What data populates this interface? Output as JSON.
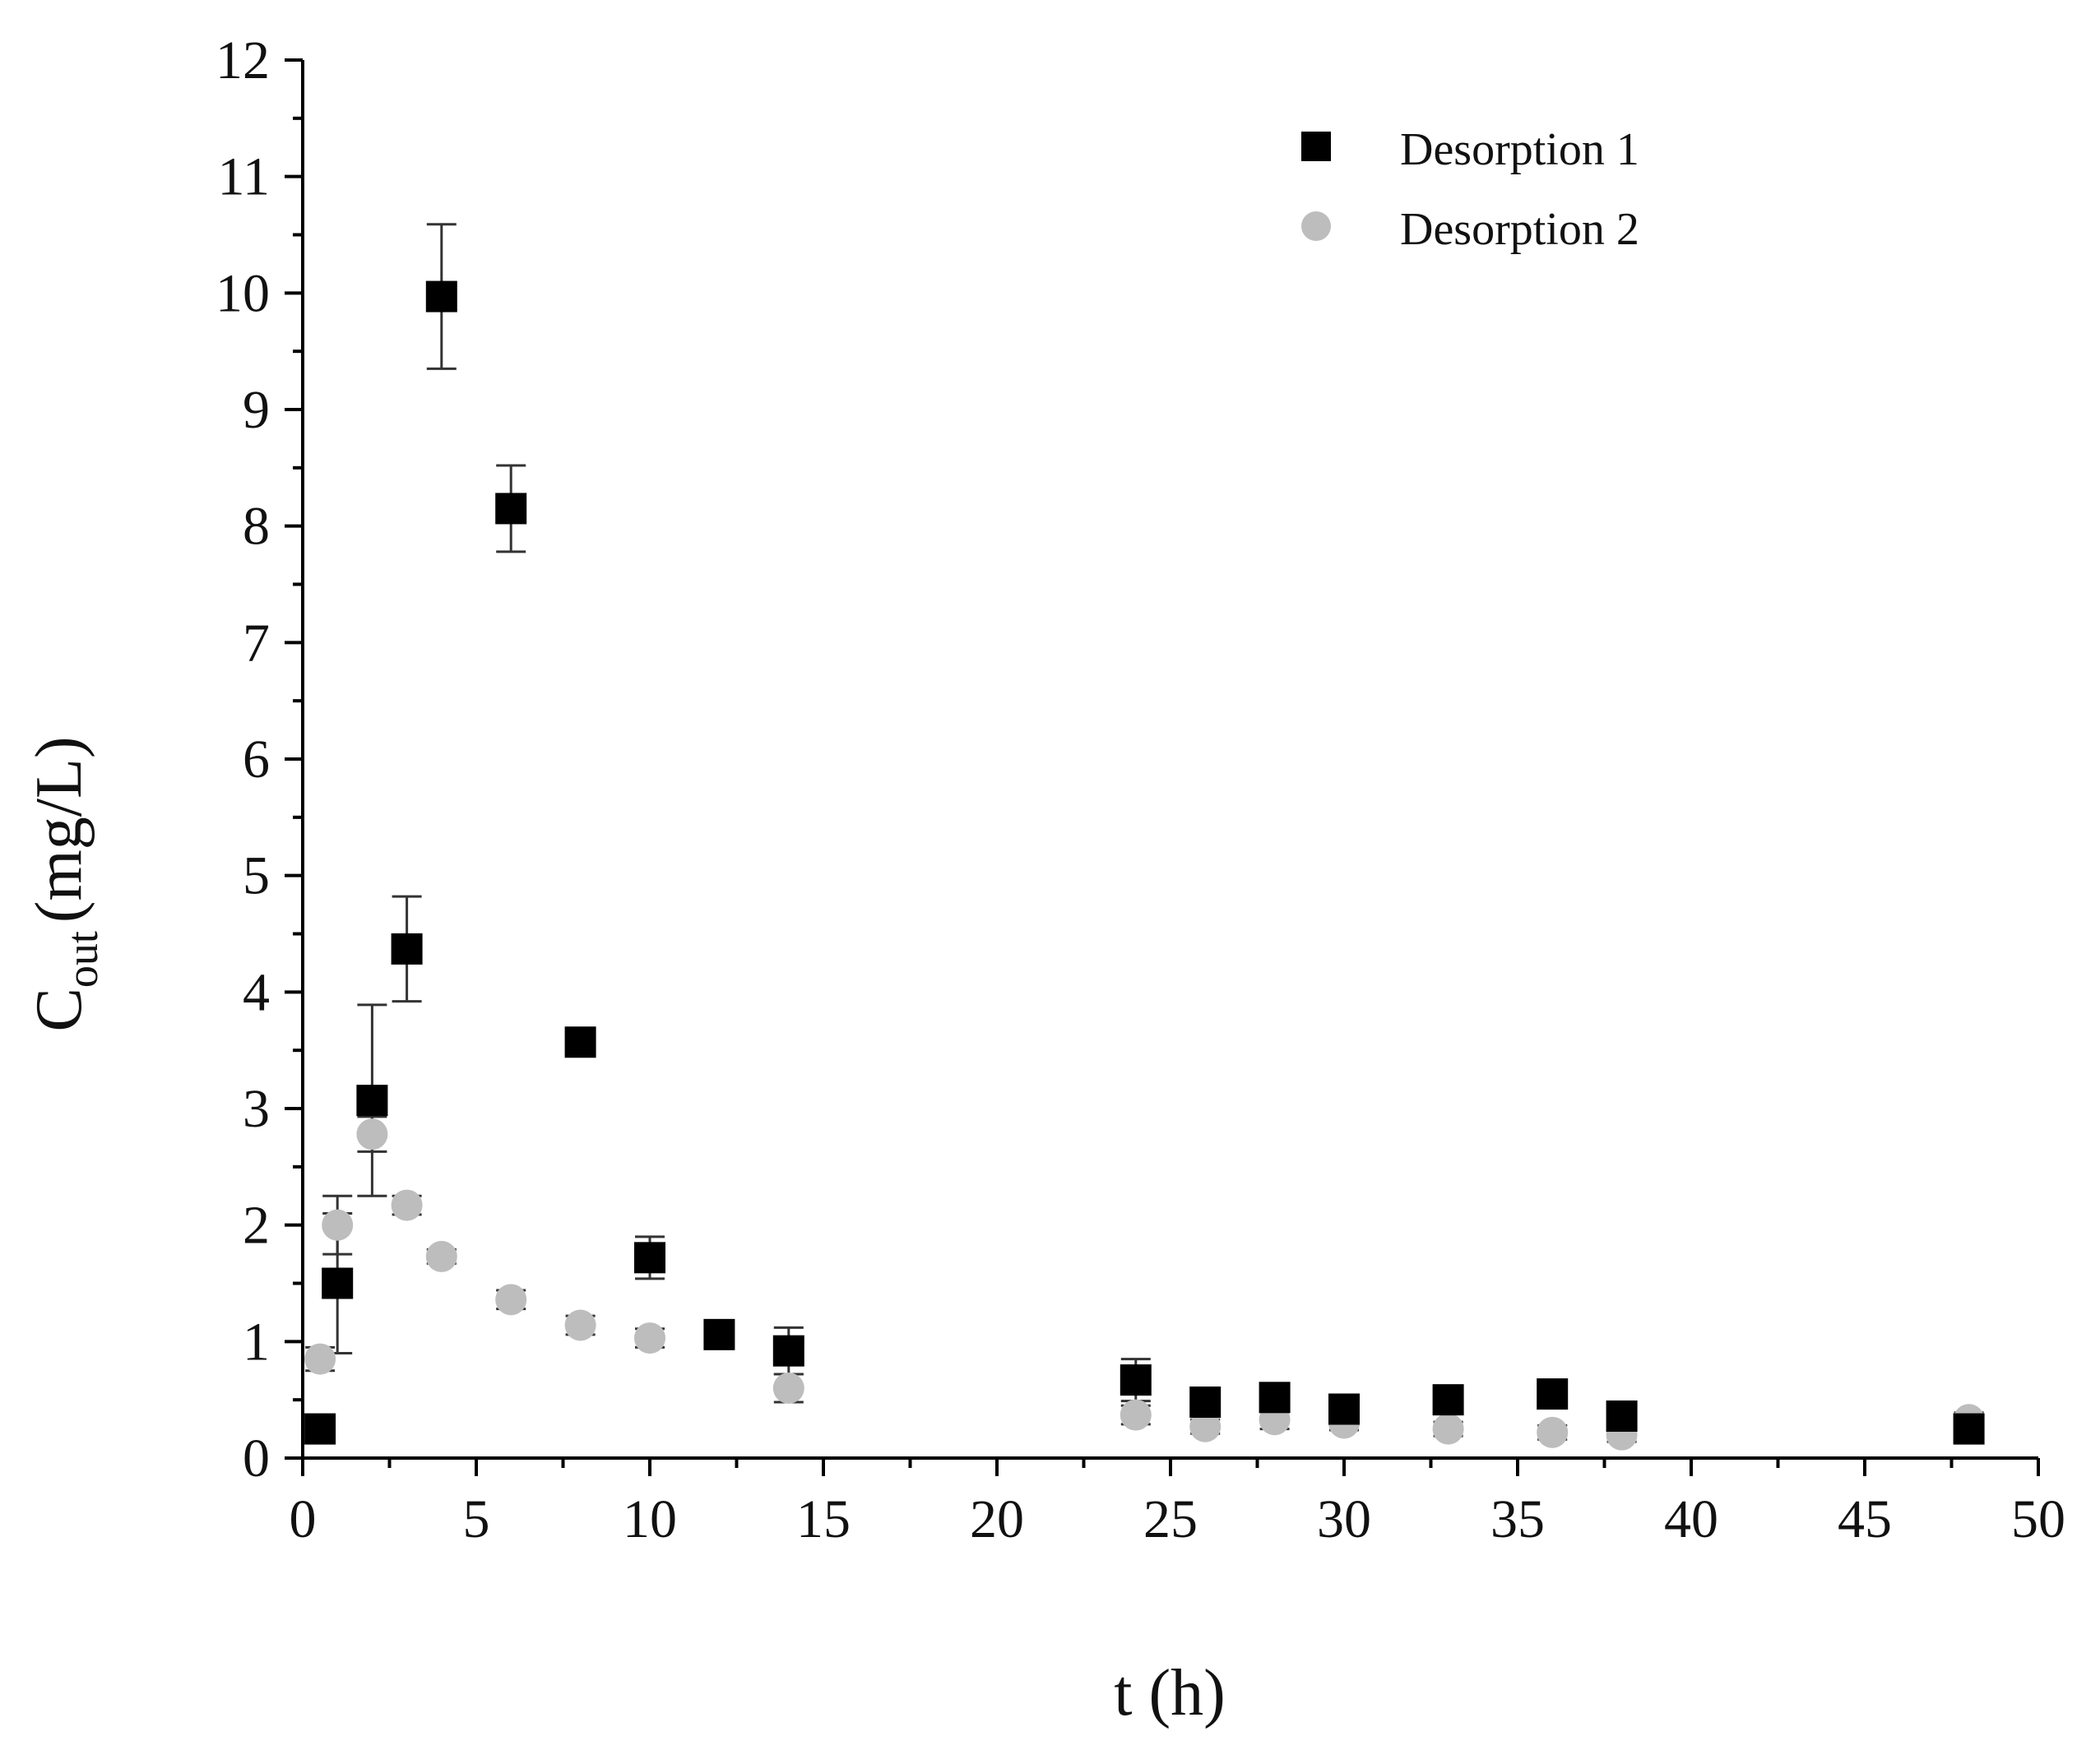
{
  "chart_data": {
    "type": "scatter",
    "xlabel": "t (h)",
    "ylabel": {
      "main": "C",
      "sub": "out",
      "unit": "(mg/L)"
    },
    "xlim": [
      0,
      50
    ],
    "ylim": [
      0,
      12
    ],
    "xticks": [
      "0",
      "5",
      "10",
      "15",
      "20",
      "25",
      "30",
      "35",
      "40",
      "45",
      "50"
    ],
    "yticks": [
      "0",
      "1",
      "2",
      "3",
      "4",
      "5",
      "6",
      "7",
      "8",
      "9",
      "10",
      "11",
      "12"
    ],
    "legend_position": "top-right",
    "grid": false,
    "series": [
      {
        "name": "Desorption 1",
        "marker": "square",
        "color": "#000000",
        "points": [
          {
            "x": 0.5,
            "y": 0.25,
            "err": 0.0
          },
          {
            "x": 1,
            "y": 1.5,
            "err": 0.6
          },
          {
            "x": 2,
            "y": 3.07,
            "err": 0.82
          },
          {
            "x": 3,
            "y": 4.37,
            "err": 0.45
          },
          {
            "x": 4,
            "y": 9.97,
            "err": 0.62
          },
          {
            "x": 6,
            "y": 8.15,
            "err": 0.37
          },
          {
            "x": 8,
            "y": 3.57,
            "err": 0.0
          },
          {
            "x": 10,
            "y": 1.72,
            "err": 0.18
          },
          {
            "x": 12,
            "y": 1.06,
            "err": 0.06
          },
          {
            "x": 14,
            "y": 0.92,
            "err": 0.2
          },
          {
            "x": 24,
            "y": 0.67,
            "err": 0.18
          },
          {
            "x": 26,
            "y": 0.48,
            "err": 0.06
          },
          {
            "x": 28,
            "y": 0.52,
            "err": 0.1
          },
          {
            "x": 30,
            "y": 0.42,
            "err": 0.05
          },
          {
            "x": 33,
            "y": 0.5,
            "err": 0.05
          },
          {
            "x": 36,
            "y": 0.55,
            "err": 0.08
          },
          {
            "x": 38,
            "y": 0.36,
            "err": 0.05
          },
          {
            "x": 48,
            "y": 0.25,
            "err": 0.05
          }
        ]
      },
      {
        "name": "Desorption 2",
        "marker": "circle",
        "color": "#bdbdbd",
        "points": [
          {
            "x": 0.5,
            "y": 0.85,
            "err": 0.1
          },
          {
            "x": 1,
            "y": 2.0,
            "err": 0.25
          },
          {
            "x": 2,
            "y": 2.78,
            "err": 0.15
          },
          {
            "x": 3,
            "y": 2.17,
            "err": 0.08
          },
          {
            "x": 4,
            "y": 1.73,
            "err": 0.06
          },
          {
            "x": 6,
            "y": 1.36,
            "err": 0.08
          },
          {
            "x": 8,
            "y": 1.14,
            "err": 0.08
          },
          {
            "x": 10,
            "y": 1.03,
            "err": 0.08
          },
          {
            "x": 14,
            "y": 0.6,
            "err": 0.12
          },
          {
            "x": 24,
            "y": 0.37,
            "err": 0.08
          },
          {
            "x": 26,
            "y": 0.27,
            "err": 0.06
          },
          {
            "x": 28,
            "y": 0.33,
            "err": 0.08
          },
          {
            "x": 30,
            "y": 0.3,
            "err": 0.06
          },
          {
            "x": 33,
            "y": 0.25,
            "err": 0.06
          },
          {
            "x": 36,
            "y": 0.22,
            "err": 0.06
          },
          {
            "x": 38,
            "y": 0.2,
            "err": 0.06
          },
          {
            "x": 48,
            "y": 0.33,
            "err": 0.06
          }
        ]
      }
    ]
  }
}
